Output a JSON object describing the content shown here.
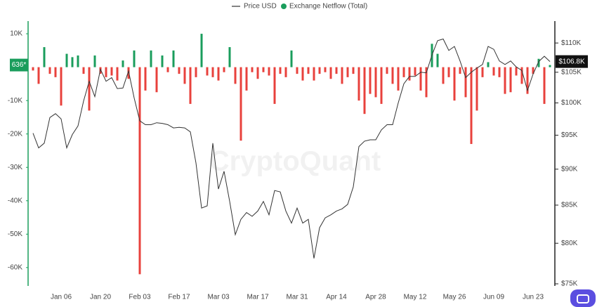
{
  "chart_data": {
    "type": "bar-line",
    "watermark": "CryptoQuant",
    "categories": [
      "",
      null,
      null,
      null,
      null,
      "Jan 06",
      null,
      null,
      null,
      null,
      null,
      null,
      "Jan 20",
      null,
      null,
      null,
      null,
      null,
      null,
      "Feb 03",
      null,
      null,
      null,
      null,
      null,
      null,
      "Feb 17",
      null,
      null,
      null,
      null,
      null,
      null,
      "Mar 03",
      null,
      null,
      null,
      null,
      null,
      null,
      "Mar 17",
      null,
      null,
      null,
      null,
      null,
      null,
      "Mar 31",
      null,
      null,
      null,
      null,
      null,
      null,
      "Apr 14",
      null,
      null,
      null,
      null,
      null,
      null,
      "Apr 28",
      null,
      null,
      null,
      null,
      null,
      null,
      "May 12",
      null,
      null,
      null,
      null,
      null,
      null,
      "May 26",
      null,
      null,
      null,
      null,
      null,
      null,
      "Jun 09",
      null,
      null,
      null,
      null,
      null,
      null,
      "Jun 23",
      null,
      null,
      null
    ],
    "series": [
      {
        "name": "Price USD",
        "color": "#333333",
        "axis": "y2",
        "values": [
          95300,
          93100,
          93800,
          97700,
          98300,
          97500,
          93100,
          95100,
          96400,
          100300,
          103500,
          101000,
          105500,
          103500,
          104100,
          102300,
          102400,
          105200,
          100800,
          97200,
          96600,
          96600,
          96900,
          96800,
          96600,
          96100,
          96200,
          96100,
          95500,
          90900,
          84600,
          84900,
          93800,
          87200,
          89700,
          85500,
          81100,
          83100,
          84000,
          83500,
          84200,
          85500,
          83700,
          87000,
          86800,
          84200,
          82600,
          84600,
          82600,
          83100,
          78100,
          82000,
          83300,
          83700,
          84200,
          84500,
          85100,
          87500,
          93300,
          94100,
          94300,
          94300,
          95800,
          96600,
          96600,
          100000,
          103100,
          104300,
          104300,
          105000,
          104900,
          107900,
          110400,
          110700,
          108700,
          109400,
          106900,
          104100,
          105000,
          105700,
          106300,
          109400,
          108900,
          106900,
          106300,
          106900,
          105900,
          105300,
          102000,
          104700,
          106800,
          107700,
          106800
        ]
      },
      {
        "name": "Exchange Netflow (Total)",
        "color": "#1a9d5c",
        "negative_color": "#e8413c",
        "values": [
          -1000,
          -5000,
          6000,
          -2000,
          -3000,
          -11500,
          4000,
          3000,
          3500,
          -2000,
          -13000,
          3500,
          -2000,
          -3000,
          -2500,
          -4000,
          2000,
          -3500,
          5000,
          -62000,
          -7000,
          5000,
          -7500,
          3500,
          -1500,
          5000,
          -2000,
          -5000,
          -11000,
          -3000,
          10000,
          -2500,
          -3000,
          -4000,
          -1500,
          6000,
          -5000,
          -22000,
          -7000,
          -1500,
          -3500,
          -1500,
          -2500,
          -11000,
          -2000,
          -3000,
          5000,
          -2000,
          -4000,
          -2000,
          -4000,
          -2000,
          -1500,
          -3500,
          -2000,
          -5000,
          -3000,
          -2000,
          -10000,
          -14000,
          -8000,
          -9000,
          -11000,
          -2000,
          -5000,
          -7000,
          -3000,
          -4000,
          -2500,
          -7000,
          -9000,
          7000,
          4000,
          -5000,
          -3000,
          -10000,
          -2000,
          -9000,
          -23000,
          -13000,
          -3000,
          1500,
          -2500,
          -3000,
          -8000,
          -7500,
          -2500,
          -5000,
          -8000,
          -2000,
          2500,
          -11000,
          636
        ]
      }
    ],
    "last_labels": {
      "y": "636*",
      "y2": "$106.8K"
    },
    "ylim": [
      -65500,
      13800
    ],
    "yticks": [
      {
        "value": 10000,
        "label": "10K"
      },
      {
        "value": -10000,
        "label": "-10K"
      },
      {
        "value": -20000,
        "label": "-20K"
      },
      {
        "value": -30000,
        "label": "-30K"
      },
      {
        "value": -40000,
        "label": "-40K"
      },
      {
        "value": -50000,
        "label": "-50K"
      },
      {
        "value": -60000,
        "label": "-60K"
      }
    ],
    "y2lim": [
      74750,
      113900
    ],
    "y2log": true,
    "y2ticks": [
      {
        "value": 110000,
        "label": "$110K"
      },
      {
        "value": 105000,
        "label": "$105K"
      },
      {
        "value": 100000,
        "label": "$100K"
      },
      {
        "value": 95000,
        "label": "$95K"
      },
      {
        "value": 90000,
        "label": "$90K"
      },
      {
        "value": 85000,
        "label": "$85K"
      },
      {
        "value": 80000,
        "label": "$80K"
      },
      {
        "value": 75000,
        "label": "$75K"
      }
    ]
  }
}
